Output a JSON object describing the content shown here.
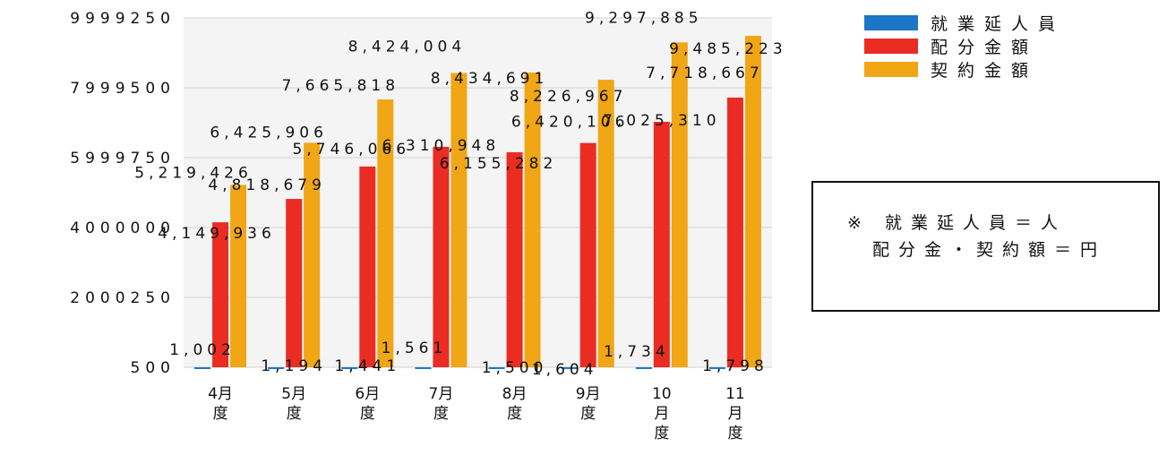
{
  "chart_data": {
    "type": "bar",
    "categories": [
      "4月\n度",
      "5月\n度",
      "6月\n度",
      "7月\n度",
      "8月\n度",
      "9月\n度",
      "10\n月\n度",
      "11\n月\n度"
    ],
    "series": [
      {
        "name": "就業延人員",
        "color": "#1b76c8",
        "values": [
          1002,
          1194,
          1441,
          1561,
          1500,
          1604,
          1734,
          1798
        ],
        "labels": [
          "1,002",
          "1,194",
          "1,441",
          "1,561",
          "1,500",
          "1,604",
          "1,734",
          "1,798"
        ]
      },
      {
        "name": "配分金額",
        "color": "#ea2c23",
        "values": [
          4149936,
          4818679,
          5746066,
          6310948,
          6155282,
          6420106,
          7025310,
          7718667
        ],
        "labels": [
          "4,149,936",
          "4,818,679",
          "5,746,066",
          "6,310,948",
          "6,155,282",
          "6,420,106",
          "7,025,310",
          "7,718,667"
        ]
      },
      {
        "name": "契約金額",
        "color": "#f0a615",
        "values": [
          5219426,
          6425906,
          7665818,
          8424004,
          8434691,
          8226967,
          9297885,
          9485223
        ],
        "labels": [
          "5,219,426",
          "6,425,906",
          "7,665,818",
          "8,424,004",
          "8,434,691",
          "8,226,967",
          "9,297,885",
          "9,485,223"
        ]
      }
    ],
    "y_ticks": [
      "9999250",
      "7999500",
      "5999750",
      "4000000",
      "2000250",
      "500"
    ],
    "ylim": [
      500,
      9999250
    ],
    "grid": true,
    "legend_position": "top-right",
    "note": {
      "line1": "※ 就業延人員＝人",
      "line2": "配分金・契約額＝円"
    }
  }
}
